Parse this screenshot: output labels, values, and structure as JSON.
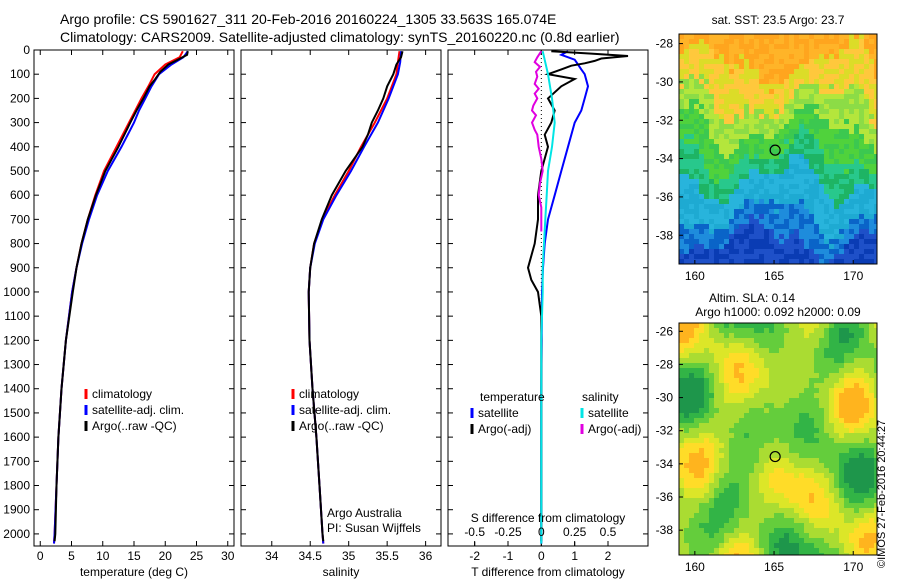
{
  "header": {
    "line1": "Argo profile: CS 5901627_311 20-Feb-2016 20160224_1305 33.563S 165.074E",
    "line2": "Climatology: CARS2009. Satellite-adjusted climatology: synTS_20160220.nc (0.8d earlier)"
  },
  "credit": "©IMOS 27-Feb-2016 20:44:27",
  "colors": {
    "climatology": "#ff0000",
    "satellite": "#0000ff",
    "argo": "#000000",
    "salinity_satellite": "#00e5e5",
    "salinity_argo": "#e000e0"
  },
  "chart_data": [
    {
      "id": "temperature",
      "type": "line",
      "xlabel": "temperature (deg C)",
      "ylabel": "",
      "xlim": [
        -1,
        31
      ],
      "ylim": [
        2050,
        0
      ],
      "xticks": [
        0,
        5,
        10,
        15,
        20,
        25,
        30
      ],
      "xtick_labels": [
        "0",
        "5",
        "10",
        "15",
        "20",
        "25",
        "30"
      ],
      "yticks": [
        0,
        100,
        200,
        300,
        400,
        500,
        600,
        700,
        800,
        900,
        1000,
        1100,
        1200,
        1300,
        1400,
        1500,
        1600,
        1700,
        1800,
        1900,
        2000
      ],
      "ytick_labels": [
        "0",
        "100",
        "200",
        "300",
        "400",
        "500",
        "600",
        "700",
        "800",
        "900",
        "1000",
        "1100",
        "1200",
        "1300",
        "1400",
        "1500",
        "1600",
        "1700",
        "1800",
        "1900",
        "2000"
      ],
      "legend": {
        "position": "lower-center",
        "entries": [
          "climatology",
          "satellite-adj. clim.",
          "Argo(..raw -QC)"
        ]
      },
      "series": [
        {
          "name": "climatology",
          "color": "#ff0000",
          "y": [
            5,
            30,
            60,
            100,
            150,
            200,
            250,
            300,
            400,
            500,
            600,
            700,
            800,
            900,
            1000,
            1200,
            1400,
            1600,
            1800,
            2000,
            2040
          ],
          "x": [
            22.8,
            22.3,
            20.0,
            18.3,
            17.3,
            16.2,
            15.2,
            14.2,
            12.2,
            10.2,
            8.8,
            7.6,
            6.6,
            5.8,
            5.1,
            4.1,
            3.4,
            2.9,
            2.6,
            2.3,
            2.2
          ]
        },
        {
          "name": "satellite-adj. clim.",
          "color": "#0000ff",
          "y": [
            5,
            30,
            60,
            100,
            150,
            200,
            250,
            300,
            400,
            500,
            600,
            700,
            800,
            900,
            1000,
            1200,
            1400,
            1600,
            1800,
            2000,
            2040
          ],
          "x": [
            23.6,
            22.9,
            21.0,
            19.0,
            17.8,
            16.8,
            15.8,
            15.0,
            13.0,
            10.8,
            9.1,
            7.8,
            6.7,
            5.8,
            5.1,
            4.1,
            3.4,
            2.9,
            2.6,
            2.3,
            2.2
          ]
        },
        {
          "name": "Argo(..raw -QC)",
          "color": "#000000",
          "y": [
            5,
            20,
            40,
            60,
            90,
            120,
            150,
            200,
            250,
            300,
            400,
            500,
            600,
            700,
            800,
            900,
            1000,
            1200,
            1400,
            1600,
            1800,
            2000,
            2030
          ],
          "x": [
            23.6,
            23.5,
            22.0,
            20.5,
            19.2,
            18.4,
            17.5,
            16.5,
            15.4,
            14.4,
            12.5,
            10.4,
            8.9,
            7.6,
            6.6,
            5.8,
            5.2,
            4.1,
            3.4,
            2.9,
            2.6,
            2.4,
            2.3
          ]
        }
      ]
    },
    {
      "id": "salinity",
      "type": "line",
      "xlabel": "salinity",
      "ylabel": "",
      "xlim": [
        33.6,
        36.2
      ],
      "ylim": [
        2050,
        0
      ],
      "xticks": [
        34,
        34.5,
        35,
        35.5,
        36
      ],
      "xtick_labels": [
        "34",
        "34.5",
        "35",
        "35.5",
        "36"
      ],
      "legend": {
        "position": "lower-center",
        "entries": [
          "climatology",
          "satellite-adj. clim.",
          "Argo(..raw -QC)"
        ]
      },
      "annotations": [
        "Argo Australia",
        "PI: Susan Wijffels"
      ],
      "series": [
        {
          "name": "climatology",
          "color": "#ff0000",
          "y": [
            5,
            50,
            100,
            150,
            200,
            250,
            300,
            400,
            500,
            600,
            700,
            800,
            900,
            1000,
            1200,
            1400,
            1600,
            1800,
            2000,
            2040
          ],
          "x": [
            35.66,
            35.64,
            35.62,
            35.56,
            35.5,
            35.42,
            35.34,
            35.16,
            35.0,
            34.82,
            34.66,
            34.55,
            34.5,
            34.48,
            34.49,
            34.53,
            34.58,
            34.62,
            34.66,
            34.67
          ]
        },
        {
          "name": "satellite-adj. clim.",
          "color": "#0000ff",
          "y": [
            5,
            50,
            100,
            150,
            200,
            250,
            300,
            400,
            500,
            600,
            700,
            800,
            900,
            1000,
            1200,
            1400,
            1600,
            1800,
            2000,
            2040
          ],
          "x": [
            35.68,
            35.67,
            35.64,
            35.58,
            35.52,
            35.45,
            35.38,
            35.2,
            35.03,
            34.84,
            34.67,
            34.56,
            34.5,
            34.48,
            34.49,
            34.53,
            34.58,
            34.62,
            34.66,
            34.67
          ]
        },
        {
          "name": "Argo(..raw -QC)",
          "color": "#000000",
          "y": [
            5,
            30,
            60,
            100,
            150,
            200,
            250,
            300,
            350,
            400,
            500,
            600,
            700,
            800,
            900,
            1000,
            1200,
            1400,
            1600,
            1800,
            2000,
            2030
          ],
          "x": [
            35.7,
            35.68,
            35.62,
            35.58,
            35.5,
            35.45,
            35.38,
            35.3,
            35.25,
            35.18,
            34.96,
            34.78,
            34.65,
            34.55,
            34.5,
            34.48,
            34.49,
            34.53,
            34.58,
            34.62,
            34.66,
            34.67
          ]
        }
      ]
    },
    {
      "id": "difference",
      "type": "line",
      "xlabel": "T difference from climatology",
      "ylabel": "",
      "xlim": [
        -2.8,
        3.2
      ],
      "ylim": [
        2050,
        0
      ],
      "xticks": [
        -2,
        -1,
        0,
        1,
        2
      ],
      "xtick_labels": [
        "-2",
        "-1",
        "0",
        "1",
        "2"
      ],
      "top_xlabel": "S difference from climatology",
      "top_xticks": [
        -0.5,
        -0.25,
        0,
        0.25,
        0.5
      ],
      "top_xtick_labels": [
        "-0.5",
        "-0.25",
        "0",
        "0.25",
        "0.5"
      ],
      "legend": {
        "position": "lower-center",
        "temperature_title": "temperature",
        "salinity_title": "salinity",
        "entries": [
          "satellite",
          "Argo(-adj)",
          "satellite",
          "Argo(-adj)"
        ]
      },
      "series": [
        {
          "name": "temperature satellite",
          "color": "#0000ff",
          "y": [
            5,
            20,
            40,
            60,
            80,
            100,
            150,
            200,
            250,
            300,
            400,
            500,
            600,
            700,
            800,
            900,
            1000,
            1200,
            1400,
            1600,
            1800,
            2000,
            2040
          ],
          "x": [
            0.8,
            0.6,
            1.0,
            1.1,
            1.2,
            1.3,
            1.4,
            1.3,
            1.2,
            1.0,
            0.8,
            0.6,
            0.4,
            0.2,
            0.1,
            0.05,
            0.02,
            0.01,
            0,
            0,
            0,
            0,
            0
          ]
        },
        {
          "name": "temperature Argo(-adj)",
          "color": "#000000",
          "y": [
            5,
            15,
            25,
            35,
            45,
            55,
            65,
            80,
            100,
            120,
            150,
            200,
            250,
            300,
            350,
            400,
            500,
            600,
            700,
            800,
            900,
            950,
            1000,
            1100,
            1200,
            1400,
            1600,
            1800,
            2000,
            2030
          ],
          "x": [
            0.3,
            1.5,
            2.6,
            1.8,
            1.6,
            1.3,
            0.9,
            0.6,
            0.2,
            1.0,
            0.6,
            0.2,
            0.4,
            0.3,
            0.1,
            0.2,
            0.0,
            -0.1,
            -0.1,
            -0.2,
            -0.4,
            -0.3,
            -0.1,
            0.0,
            0.0,
            0.0,
            0.0,
            0.0,
            0.0,
            0.0
          ]
        },
        {
          "name": "salinity satellite",
          "color": "#00e5e5",
          "y": [
            5,
            100,
            200,
            300,
            400,
            500,
            600,
            700,
            800,
            900,
            1000,
            1200,
            1400,
            1600,
            1800,
            2000,
            2040
          ],
          "x": [
            0.01,
            0.05,
            0.08,
            0.1,
            0.08,
            0.05,
            0.04,
            0.03,
            0.02,
            0.01,
            0.01,
            0,
            0,
            0,
            0,
            0,
            0
          ]
        },
        {
          "name": "salinity Argo(-adj)",
          "color": "#e000e0",
          "y": [
            5,
            30,
            50,
            70,
            90,
            110,
            140,
            160,
            180,
            200,
            230,
            250,
            270,
            300,
            330,
            350,
            400,
            450,
            500,
            550,
            600,
            650,
            700,
            750
          ],
          "x": [
            0.0,
            -0.03,
            -0.05,
            -0.01,
            -0.04,
            -0.03,
            -0.05,
            -0.02,
            -0.05,
            -0.03,
            -0.06,
            -0.07,
            -0.04,
            -0.07,
            -0.05,
            -0.03,
            -0.02,
            0.0,
            0.01,
            -0.01,
            -0.02,
            0.0,
            0.0,
            0.0
          ]
        }
      ]
    },
    {
      "id": "sst-map",
      "type": "heatmap",
      "title": "sat. SST: 23.5 Argo: 23.7",
      "xlim": [
        159,
        171.5
      ],
      "ylim": [
        -39.5,
        -27.5
      ],
      "xticks": [
        160,
        165,
        170
      ],
      "xtick_labels": [
        "160",
        "165",
        "170"
      ],
      "yticks": [
        -28,
        -30,
        -32,
        -34,
        -36,
        -38
      ],
      "ytick_labels": [
        "-28",
        "-30",
        "-32",
        "-34",
        "-36",
        "-38"
      ],
      "marker": {
        "lon": 165.07,
        "lat": -33.56
      }
    },
    {
      "id": "sla-map",
      "type": "heatmap",
      "title": "Altim. SLA: 0.14",
      "subtitle": "Argo h1000: 0.092 h2000: 0.09",
      "xlim": [
        159,
        171.5
      ],
      "ylim": [
        -39.5,
        -25.5
      ],
      "xticks": [
        160,
        165,
        170
      ],
      "xtick_labels": [
        "160",
        "165",
        "170"
      ],
      "yticks": [
        -26,
        -28,
        -30,
        -32,
        -34,
        -36,
        -38
      ],
      "ytick_labels": [
        "-26",
        "-28",
        "-30",
        "-32",
        "-34",
        "-36",
        "-38"
      ],
      "marker": {
        "lon": 165.07,
        "lat": -33.56
      }
    }
  ]
}
